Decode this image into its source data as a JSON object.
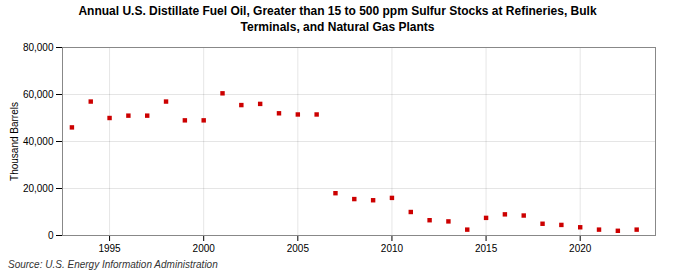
{
  "chart_data": {
    "type": "scatter",
    "title": "Annual U.S. Distillate Fuel Oil, Greater than 15 to 500 ppm Sulfur Stocks at Refineries, Bulk\nTerminals, and Natural Gas Plants",
    "ylabel": "Thousand Barrels",
    "source": "Source: U.S. Energy Information Administration",
    "x": [
      1993,
      1994,
      1995,
      1996,
      1997,
      1998,
      1999,
      2000,
      2001,
      2002,
      2003,
      2004,
      2005,
      2006,
      2007,
      2008,
      2009,
      2010,
      2011,
      2012,
      2013,
      2014,
      2015,
      2016,
      2017,
      2018,
      2019,
      2020,
      2021,
      2022,
      2023
    ],
    "values": [
      46000,
      57000,
      50000,
      51000,
      51000,
      57000,
      49000,
      49000,
      60500,
      55500,
      56000,
      52000,
      51500,
      51500,
      18000,
      15500,
      15000,
      16000,
      10000,
      6500,
      6000,
      2500,
      7500,
      9000,
      8500,
      5000,
      4500,
      3500,
      2500,
      2000,
      2500
    ],
    "color": "#cc0000",
    "marker": "square",
    "xlim": [
      1992.5,
      2024
    ],
    "xticks": [
      1995,
      2000,
      2005,
      2010,
      2015,
      2020
    ],
    "ylim": [
      0,
      80000
    ],
    "yticks": [
      0,
      {
        "value": 20000,
        "label": "20,000"
      },
      {
        "value": 40000,
        "label": "40,000"
      },
      {
        "value": 60000,
        "label": "60,000"
      },
      {
        "value": 80000,
        "label": "80,000"
      }
    ],
    "grid": true
  }
}
